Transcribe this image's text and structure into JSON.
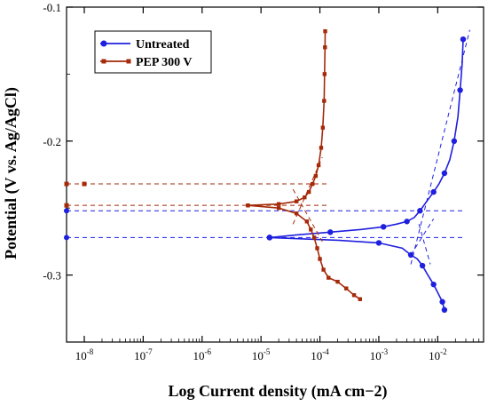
{
  "chart_data": {
    "type": "line",
    "xlabel": "Log Current density (mA cm−2)",
    "ylabel": "Potential (V vs. Ag/AgCl)",
    "x_scale": "log",
    "xlim": [
      5e-09,
      0.06
    ],
    "ylim": [
      -0.35,
      -0.1
    ],
    "x_ticks": [
      {
        "value": 1e-08,
        "label": "10-8"
      },
      {
        "value": 1e-07,
        "label": "10-7"
      },
      {
        "value": 1e-06,
        "label": "10-6"
      },
      {
        "value": 1e-05,
        "label": "10-5"
      },
      {
        "value": 0.0001,
        "label": "10-4"
      },
      {
        "value": 0.001,
        "label": "10-3"
      },
      {
        "value": 0.01,
        "label": "10-2"
      }
    ],
    "y_ticks": [
      {
        "value": -0.1,
        "label": "-0.1"
      },
      {
        "value": -0.2,
        "label": "-0.2"
      },
      {
        "value": -0.3,
        "label": "-0.3"
      }
    ],
    "legend_position": "top-left",
    "grid": false,
    "series": [
      {
        "name": "Untreated",
        "color": "#1f1fe0",
        "marker": "circle",
        "points": [
          [
            1.4e-05,
            -0.272
          ],
          [
            4e-05,
            -0.27
          ],
          [
            0.00015,
            -0.268
          ],
          [
            0.0005,
            -0.266
          ],
          [
            0.0012,
            -0.264
          ],
          [
            0.002,
            -0.262
          ],
          [
            0.003,
            -0.26
          ],
          [
            0.004,
            -0.257
          ],
          [
            0.005,
            -0.252
          ],
          [
            0.0065,
            -0.245
          ],
          [
            0.0085,
            -0.238
          ],
          [
            0.0105,
            -0.232
          ],
          [
            0.013,
            -0.224
          ],
          [
            0.016,
            -0.214
          ],
          [
            0.019,
            -0.2
          ],
          [
            0.022,
            -0.182
          ],
          [
            0.024,
            -0.162
          ],
          [
            0.026,
            -0.142
          ],
          [
            0.027,
            -0.124
          ]
        ],
        "cathodic": [
          [
            1.4e-05,
            -0.272
          ],
          [
            0.0002,
            -0.274
          ],
          [
            0.001,
            -0.276
          ],
          [
            0.0025,
            -0.28
          ],
          [
            0.0035,
            -0.285
          ],
          [
            0.0045,
            -0.288
          ],
          [
            0.0055,
            -0.293
          ],
          [
            0.0068,
            -0.3
          ],
          [
            0.0085,
            -0.307
          ],
          [
            0.01,
            -0.313
          ],
          [
            0.012,
            -0.32
          ],
          [
            0.013,
            -0.326
          ]
        ],
        "tafel_lines": [
          {
            "from": [
              0.0035,
              -0.292
            ],
            "to": [
              0.035,
              -0.117
            ]
          },
          {
            "from": [
              0.0035,
              -0.285
            ],
            "to": [
              0.0085,
              -0.258
            ]
          },
          {
            "from": [
              0.0048,
              -0.262
            ],
            "to": [
              0.0075,
              -0.292
            ]
          }
        ],
        "reference_lines": [
          -0.252,
          -0.272
        ]
      },
      {
        "name": "PEP 300 V",
        "color": "#a52a0a",
        "marker": "square",
        "points": [
          [
            6e-06,
            -0.248
          ],
          [
            2e-05,
            -0.247
          ],
          [
            4e-05,
            -0.245
          ],
          [
            5.5e-05,
            -0.242
          ],
          [
            6.5e-05,
            -0.238
          ],
          [
            7.5e-05,
            -0.232
          ],
          [
            8.5e-05,
            -0.226
          ],
          [
            9.5e-05,
            -0.218
          ],
          [
            0.000105,
            -0.205
          ],
          [
            0.000112,
            -0.19
          ],
          [
            0.000118,
            -0.17
          ],
          [
            0.00012,
            -0.15
          ],
          [
            0.000122,
            -0.13
          ],
          [
            0.000123,
            -0.118
          ]
        ],
        "cathodic": [
          [
            6e-06,
            -0.248
          ],
          [
            2e-05,
            -0.25
          ],
          [
            4e-05,
            -0.254
          ],
          [
            6e-05,
            -0.26
          ],
          [
            7e-05,
            -0.266
          ],
          [
            8e-05,
            -0.272
          ],
          [
            9e-05,
            -0.28
          ],
          [
            0.0001,
            -0.288
          ],
          [
            0.000115,
            -0.296
          ],
          [
            0.00014,
            -0.302
          ],
          [
            0.0002,
            -0.305
          ],
          [
            0.00028,
            -0.31
          ],
          [
            0.00038,
            -0.315
          ],
          [
            0.00048,
            -0.318
          ]
        ],
        "tafel_lines": [
          {
            "from": [
              3.5e-05,
              -0.262
            ],
            "to": [
              0.00011,
              -0.212
            ]
          },
          {
            "from": [
              3.5e-05,
              -0.236
            ],
            "to": [
              0.00011,
              -0.275
            ]
          }
        ],
        "reference_lines": [
          -0.232,
          -0.248
        ]
      }
    ]
  }
}
